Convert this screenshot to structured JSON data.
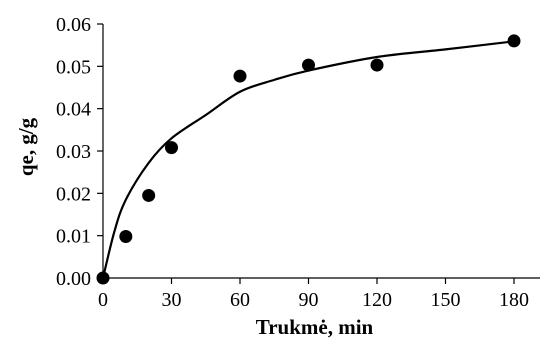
{
  "chart_data": {
    "type": "scatter",
    "title": "",
    "xlabel": "Trukmė, min",
    "ylabel": "qe, g/g",
    "xlim": [
      0,
      180
    ],
    "ylim": [
      0,
      0.06
    ],
    "x_ticks": [
      "0",
      "30",
      "60",
      "90",
      "120",
      "150",
      "180"
    ],
    "y_ticks": [
      "0.00",
      "0.01",
      "0.02",
      "0.03",
      "0.04",
      "0.05",
      "0.06"
    ],
    "grid": false,
    "legend": "none",
    "series": [
      {
        "kind": "markers",
        "x": [
          0,
          10,
          20,
          30,
          60,
          90,
          120,
          180
        ],
        "y": [
          0.0,
          0.0098,
          0.0195,
          0.0308,
          0.0477,
          0.0503,
          0.0503,
          0.056
        ]
      },
      {
        "kind": "fitted-line",
        "x": [
          0,
          5,
          10,
          20,
          30,
          45,
          60,
          75,
          90,
          120,
          150,
          180
        ],
        "y": [
          0.0,
          0.011,
          0.0185,
          0.0272,
          0.033,
          0.0385,
          0.044,
          0.0468,
          0.049,
          0.0522,
          0.054,
          0.0559
        ]
      }
    ],
    "colors": {
      "axis": "#000000",
      "markers": "#000000",
      "line": "#000000"
    }
  }
}
